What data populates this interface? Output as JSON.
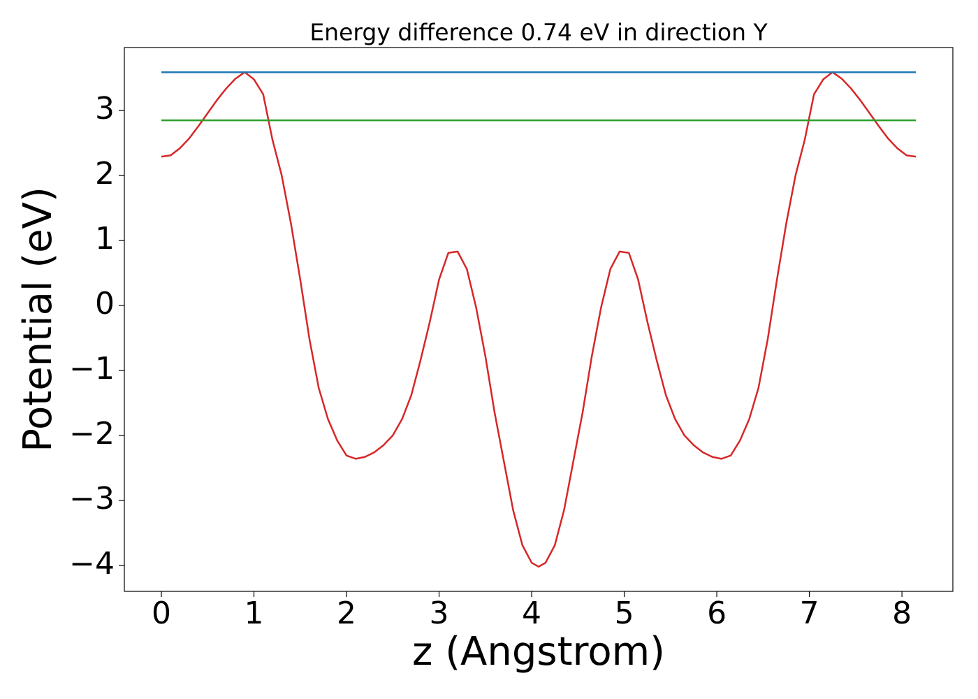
{
  "chart_data": {
    "type": "line",
    "title": "Energy difference 0.74 eV in direction Y",
    "xlabel": "z (Angstrom)",
    "ylabel": "Potential (eV)",
    "xlim": [
      -0.4,
      8.55
    ],
    "ylim": [
      -4.4,
      3.97
    ],
    "xticks": [
      0,
      1,
      2,
      3,
      4,
      5,
      6,
      7,
      8
    ],
    "yticks": [
      {
        "value": -4,
        "label": "−4"
      },
      {
        "value": -3,
        "label": "−3"
      },
      {
        "value": -2,
        "label": "−2"
      },
      {
        "value": -1,
        "label": "−1"
      },
      0,
      1,
      2,
      3
    ],
    "grid": false,
    "series": [
      {
        "color": "#d62728",
        "x": [
          0,
          0.1,
          0.2,
          0.3,
          0.4,
          0.5,
          0.6,
          0.7,
          0.8,
          0.9,
          1.0,
          1.1,
          1.2,
          1.3,
          1.4,
          1.5,
          1.6,
          1.7,
          1.8,
          1.9,
          2.0,
          2.1,
          2.2,
          2.3,
          2.4,
          2.5,
          2.6,
          2.7,
          2.8,
          2.9,
          3.0,
          3.1,
          3.2,
          3.3,
          3.4,
          3.5,
          3.6,
          3.7,
          3.8,
          3.9,
          4.0,
          4.075,
          4.15,
          4.25,
          4.35,
          4.45,
          4.55,
          4.65,
          4.75,
          4.85,
          4.95,
          5.05,
          5.15,
          5.25,
          5.35,
          5.45,
          5.55,
          5.65,
          5.75,
          5.85,
          5.95,
          6.05,
          6.15,
          6.25,
          6.35,
          6.45,
          6.55,
          6.65,
          6.75,
          6.85,
          6.95,
          7.05,
          7.15,
          7.25,
          7.35,
          7.45,
          7.55,
          7.65,
          7.75,
          7.85,
          7.95,
          8.05,
          8.15
        ],
        "values": [
          2.29,
          2.31,
          2.42,
          2.57,
          2.76,
          2.96,
          3.16,
          3.34,
          3.49,
          3.59,
          3.48,
          3.25,
          2.55,
          2.0,
          1.26,
          0.4,
          -0.52,
          -1.27,
          -1.75,
          -2.08,
          -2.31,
          -2.36,
          -2.33,
          -2.26,
          -2.15,
          -2.0,
          -1.75,
          -1.38,
          -0.84,
          -0.25,
          0.4,
          0.81,
          0.83,
          0.56,
          -0.03,
          -0.78,
          -1.65,
          -2.4,
          -3.15,
          -3.69,
          -3.96,
          -4.02,
          -3.96,
          -3.69,
          -3.15,
          -2.4,
          -1.65,
          -0.78,
          -0.03,
          0.56,
          0.83,
          0.81,
          0.4,
          -0.25,
          -0.84,
          -1.38,
          -1.75,
          -2.0,
          -2.15,
          -2.26,
          -2.33,
          -2.36,
          -2.31,
          -2.08,
          -1.75,
          -1.27,
          -0.52,
          0.4,
          1.26,
          2.0,
          2.55,
          3.25,
          3.48,
          3.59,
          3.49,
          3.34,
          3.16,
          2.96,
          2.76,
          2.57,
          2.42,
          2.31,
          2.29
        ]
      },
      {
        "color": "#1f77b4",
        "x": [
          0,
          8.15
        ],
        "values": [
          3.59,
          3.59
        ]
      },
      {
        "color": "#2ca02c",
        "x": [
          0,
          8.15
        ],
        "values": [
          2.85,
          2.85
        ]
      }
    ]
  }
}
